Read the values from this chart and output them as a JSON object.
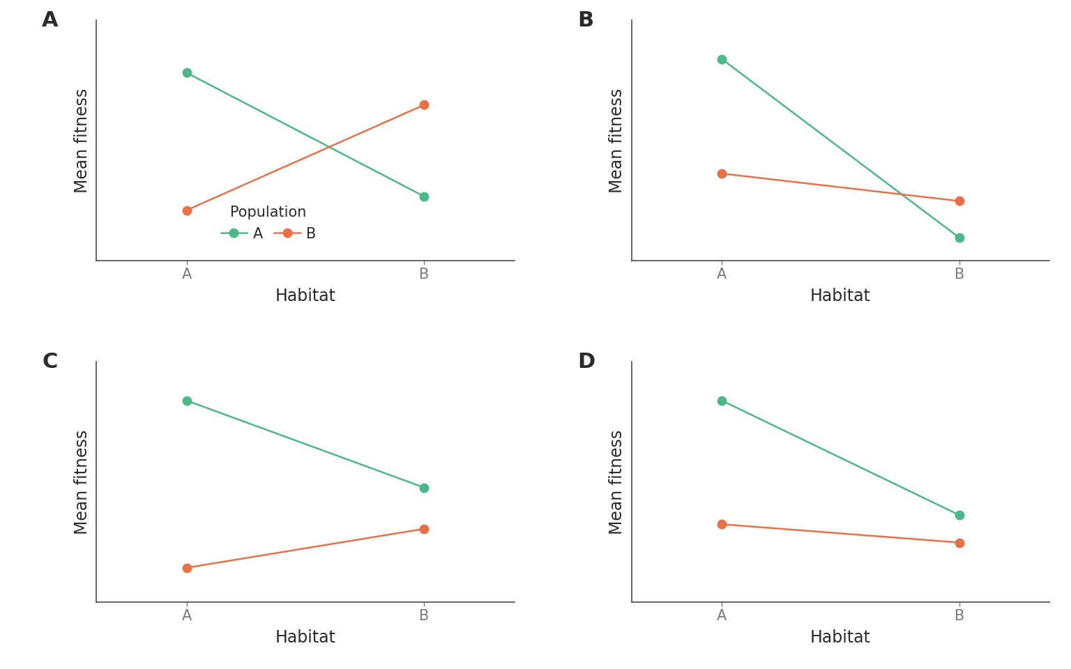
{
  "green_color": "#4CB887",
  "orange_color": "#E8714A",
  "marker_size": 9,
  "line_width": 1.8,
  "xlabel": "Habitat",
  "ylabel": "Mean fitness",
  "x_ticks": [
    "A",
    "B"
  ],
  "panel_labels": [
    "A",
    "B",
    "C",
    "D"
  ],
  "legend_title": "Population",
  "legend_entries": [
    "A",
    "B"
  ],
  "subplots": {
    "A": {
      "green": [
        0.82,
        0.28
      ],
      "orange": [
        0.22,
        0.68
      ]
    },
    "B": {
      "green": [
        0.88,
        0.1
      ],
      "orange": [
        0.38,
        0.26
      ]
    },
    "C": {
      "green": [
        0.88,
        0.5
      ],
      "orange": [
        0.15,
        0.32
      ]
    },
    "D": {
      "green": [
        0.88,
        0.38
      ],
      "orange": [
        0.34,
        0.26
      ]
    }
  },
  "background_color": "#ffffff",
  "spine_color": "#4a4a4a",
  "text_color": "#2b2b2b",
  "tick_color": "#7a7a7a",
  "panel_fontsize": 22,
  "label_fontsize": 17,
  "tick_fontsize": 15,
  "legend_fontsize": 15,
  "legend_title_fontsize": 15
}
